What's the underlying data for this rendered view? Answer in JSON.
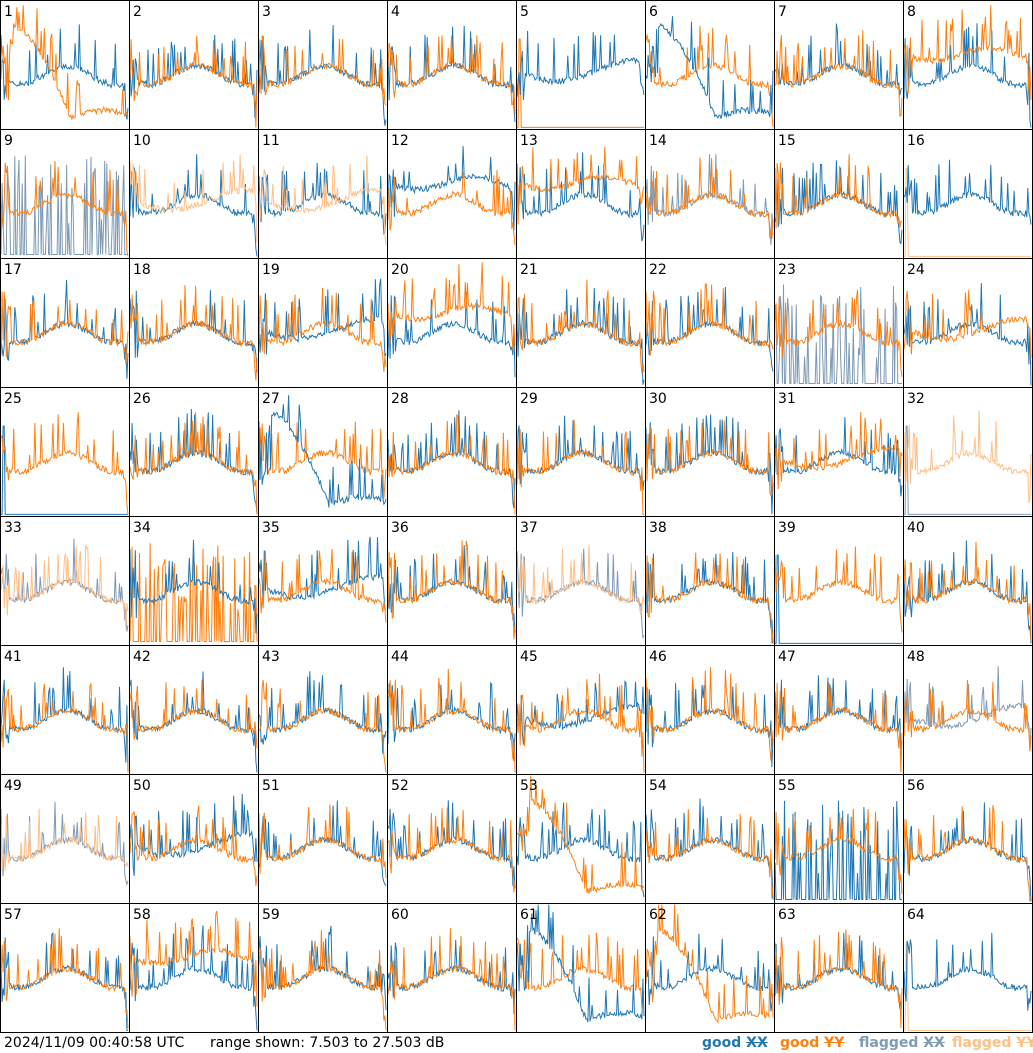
{
  "chart_data": {
    "type": "line",
    "panel_ids": [
      1,
      2,
      3,
      4,
      5,
      6,
      7,
      8,
      9,
      10,
      11,
      12,
      13,
      14,
      15,
      16,
      17,
      18,
      19,
      20,
      21,
      22,
      23,
      24,
      25,
      26,
      27,
      28,
      29,
      30,
      31,
      32,
      33,
      34,
      35,
      36,
      37,
      38,
      39,
      40,
      41,
      42,
      43,
      44,
      45,
      46,
      47,
      48,
      49,
      50,
      51,
      52,
      53,
      54,
      55,
      56,
      57,
      58,
      59,
      60,
      61,
      62,
      63,
      64
    ],
    "ylim": [
      7.503,
      27.503
    ],
    "yunit": "dB",
    "series": [
      {
        "name": "good XX",
        "color": "#1f77b4"
      },
      {
        "name": "good YY",
        "color": "#ff7f0e"
      },
      {
        "name": "flagged XX",
        "color": "#7f9ab5"
      },
      {
        "name": "flagged YY",
        "color": "#ffbf86"
      }
    ],
    "panel_traces": {
      "1": [
        [
          "XX",
          "good",
          "normal"
        ],
        [
          "YY",
          "good",
          "dip"
        ]
      ],
      "2": [
        [
          "XX",
          "good",
          "normal"
        ],
        [
          "YY",
          "good",
          "normal"
        ]
      ],
      "3": [
        [
          "XX",
          "good",
          "normal"
        ],
        [
          "YY",
          "good",
          "normal"
        ]
      ],
      "4": [
        [
          "XX",
          "good",
          "normal"
        ],
        [
          "YY",
          "good",
          "normal"
        ]
      ],
      "5": [
        [
          "YY",
          "good",
          "dead"
        ],
        [
          "XX",
          "good",
          "mid"
        ]
      ],
      "6": [
        [
          "YY",
          "good",
          "normal"
        ],
        [
          "XX",
          "good",
          "dip"
        ]
      ],
      "7": [
        [
          "XX",
          "good",
          "normal"
        ],
        [
          "YY",
          "good",
          "normal"
        ]
      ],
      "8": [
        [
          "XX",
          "good",
          "normal"
        ],
        [
          "YY",
          "good",
          "low"
        ]
      ],
      "9": [
        [
          "XX",
          "flagged",
          "spiky"
        ],
        [
          "YY",
          "good",
          "normal"
        ]
      ],
      "10": [
        [
          "XX",
          "good",
          "normal"
        ],
        [
          "YY",
          "flagged",
          "mid"
        ]
      ],
      "11": [
        [
          "XX",
          "good",
          "normal"
        ],
        [
          "YY",
          "flagged",
          "mid"
        ]
      ],
      "12": [
        [
          "XX",
          "good",
          "low"
        ],
        [
          "YY",
          "good",
          "normal"
        ]
      ],
      "13": [
        [
          "XX",
          "good",
          "normal"
        ],
        [
          "YY",
          "good",
          "low"
        ]
      ],
      "14": [
        [
          "XX",
          "flagged",
          "normal"
        ],
        [
          "YY",
          "good",
          "normal"
        ]
      ],
      "15": [
        [
          "XX",
          "good",
          "normal"
        ],
        [
          "YY",
          "good",
          "normal"
        ]
      ],
      "16": [
        [
          "YY",
          "flagged",
          "dead"
        ],
        [
          "XX",
          "good",
          "normal"
        ]
      ],
      "17": [
        [
          "XX",
          "good",
          "normal"
        ],
        [
          "YY",
          "good",
          "normal"
        ]
      ],
      "18": [
        [
          "XX",
          "good",
          "normal"
        ],
        [
          "YY",
          "good",
          "normal"
        ]
      ],
      "19": [
        [
          "XX",
          "good",
          "mid"
        ],
        [
          "YY",
          "good",
          "normal"
        ]
      ],
      "20": [
        [
          "XX",
          "good",
          "normal"
        ],
        [
          "YY",
          "good",
          "low"
        ]
      ],
      "21": [
        [
          "XX",
          "good",
          "normal"
        ],
        [
          "YY",
          "good",
          "normal"
        ]
      ],
      "22": [
        [
          "XX",
          "good",
          "normal"
        ],
        [
          "YY",
          "good",
          "normal"
        ]
      ],
      "23": [
        [
          "XX",
          "flagged",
          "spiky"
        ],
        [
          "YY",
          "good",
          "normal"
        ]
      ],
      "24": [
        [
          "XX",
          "good",
          "normal"
        ],
        [
          "YY",
          "good",
          "mid"
        ]
      ],
      "25": [
        [
          "XX",
          "good",
          "dead"
        ],
        [
          "YY",
          "good",
          "normal"
        ]
      ],
      "26": [
        [
          "XX",
          "good",
          "normal"
        ],
        [
          "YY",
          "good",
          "normal"
        ]
      ],
      "27": [
        [
          "YY",
          "good",
          "normal"
        ],
        [
          "XX",
          "good",
          "dip"
        ]
      ],
      "28": [
        [
          "XX",
          "good",
          "normal"
        ],
        [
          "YY",
          "good",
          "normal"
        ]
      ],
      "29": [
        [
          "XX",
          "good",
          "normal"
        ],
        [
          "YY",
          "good",
          "normal"
        ]
      ],
      "30": [
        [
          "XX",
          "good",
          "normal"
        ],
        [
          "YY",
          "good",
          "normal"
        ]
      ],
      "31": [
        [
          "XX",
          "good",
          "normal"
        ],
        [
          "YY",
          "good",
          "mid"
        ]
      ],
      "32": [
        [
          "XX",
          "flagged",
          "dead"
        ],
        [
          "YY",
          "flagged",
          "normal"
        ]
      ],
      "33": [
        [
          "XX",
          "flagged",
          "normal"
        ],
        [
          "YY",
          "flagged",
          "normal"
        ]
      ],
      "34": [
        [
          "YY",
          "good",
          "spiky"
        ],
        [
          "XX",
          "good",
          "normal"
        ]
      ],
      "35": [
        [
          "XX",
          "good",
          "mid"
        ],
        [
          "YY",
          "good",
          "normal"
        ]
      ],
      "36": [
        [
          "XX",
          "good",
          "normal"
        ],
        [
          "YY",
          "good",
          "normal"
        ]
      ],
      "37": [
        [
          "XX",
          "flagged",
          "normal"
        ],
        [
          "YY",
          "flagged",
          "normal"
        ]
      ],
      "38": [
        [
          "XX",
          "good",
          "normal"
        ],
        [
          "YY",
          "good",
          "normal"
        ]
      ],
      "39": [
        [
          "XX",
          "good",
          "dead"
        ],
        [
          "YY",
          "good",
          "normal"
        ]
      ],
      "40": [
        [
          "XX",
          "good",
          "normal"
        ],
        [
          "YY",
          "good",
          "normal"
        ]
      ],
      "41": [
        [
          "XX",
          "good",
          "normal"
        ],
        [
          "YY",
          "good",
          "normal"
        ]
      ],
      "42": [
        [
          "XX",
          "good",
          "normal"
        ],
        [
          "YY",
          "good",
          "normal"
        ]
      ],
      "43": [
        [
          "XX",
          "good",
          "normal"
        ],
        [
          "YY",
          "good",
          "normal"
        ]
      ],
      "44": [
        [
          "XX",
          "good",
          "normal"
        ],
        [
          "YY",
          "good",
          "normal"
        ]
      ],
      "45": [
        [
          "XX",
          "good",
          "mid"
        ],
        [
          "YY",
          "good",
          "normal"
        ]
      ],
      "46": [
        [
          "XX",
          "good",
          "normal"
        ],
        [
          "YY",
          "good",
          "normal"
        ]
      ],
      "47": [
        [
          "XX",
          "good",
          "normal"
        ],
        [
          "YY",
          "good",
          "normal"
        ]
      ],
      "48": [
        [
          "XX",
          "flagged",
          "mid"
        ],
        [
          "YY",
          "good",
          "normal"
        ]
      ],
      "49": [
        [
          "XX",
          "flagged",
          "normal"
        ],
        [
          "YY",
          "flagged",
          "normal"
        ]
      ],
      "50": [
        [
          "XX",
          "good",
          "mid"
        ],
        [
          "YY",
          "good",
          "normal"
        ]
      ],
      "51": [
        [
          "XX",
          "good",
          "normal"
        ],
        [
          "YY",
          "good",
          "normal"
        ]
      ],
      "52": [
        [
          "XX",
          "good",
          "normal"
        ],
        [
          "YY",
          "good",
          "normal"
        ]
      ],
      "53": [
        [
          "XX",
          "good",
          "normal"
        ],
        [
          "YY",
          "good",
          "dip"
        ]
      ],
      "54": [
        [
          "XX",
          "good",
          "normal"
        ],
        [
          "YY",
          "good",
          "normal"
        ]
      ],
      "55": [
        [
          "XX",
          "good",
          "spiky"
        ],
        [
          "YY",
          "good",
          "normal"
        ]
      ],
      "56": [
        [
          "XX",
          "good",
          "normal"
        ],
        [
          "YY",
          "good",
          "normal"
        ]
      ],
      "57": [
        [
          "XX",
          "good",
          "normal"
        ],
        [
          "YY",
          "good",
          "normal"
        ]
      ],
      "58": [
        [
          "XX",
          "good",
          "normal"
        ],
        [
          "YY",
          "good",
          "low"
        ]
      ],
      "59": [
        [
          "XX",
          "good",
          "normal"
        ],
        [
          "YY",
          "good",
          "normal"
        ]
      ],
      "60": [
        [
          "XX",
          "good",
          "normal"
        ],
        [
          "YY",
          "good",
          "normal"
        ]
      ],
      "61": [
        [
          "YY",
          "good",
          "normal"
        ],
        [
          "XX",
          "good",
          "dip"
        ]
      ],
      "62": [
        [
          "XX",
          "good",
          "normal"
        ],
        [
          "YY",
          "good",
          "dip"
        ]
      ],
      "63": [
        [
          "XX",
          "good",
          "normal"
        ],
        [
          "YY",
          "good",
          "normal"
        ]
      ],
      "64": [
        [
          "YY",
          "flagged",
          "dead"
        ],
        [
          "XX",
          "good",
          "normal"
        ]
      ]
    }
  },
  "footer": {
    "timestamp": "2024/11/09 00:40:58 UTC",
    "range_text": "range shown: 7.503 to 27.503 dB"
  },
  "legend": [
    {
      "state": "good",
      "pol": "XX",
      "color": "#1f77b4"
    },
    {
      "state": "good",
      "pol": "YY",
      "color": "#ff7f0e"
    },
    {
      "state": "flagged",
      "pol": "XX",
      "color": "#7f9ab5"
    },
    {
      "state": "flagged",
      "pol": "YY",
      "color": "#ffbf86"
    }
  ]
}
